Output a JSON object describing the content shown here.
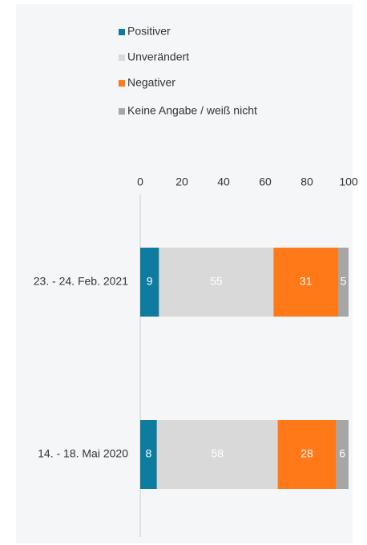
{
  "chart_data": {
    "type": "bar",
    "orientation": "horizontal",
    "stacked": true,
    "categories": [
      "23. - 24. Feb. 2021",
      "14. - 18. Mai 2020"
    ],
    "series": [
      {
        "name": "Positiver",
        "color": "#0e7c9e",
        "values": [
          9,
          8
        ]
      },
      {
        "name": "Unverändert",
        "color": "#d9d9d9",
        "values": [
          55,
          58
        ]
      },
      {
        "name": "Negativer",
        "color": "#ff7919",
        "values": [
          31,
          28
        ]
      },
      {
        "name": "Keine Angabe / weiß nicht",
        "color": "#a6a6a6",
        "values": [
          5,
          6
        ]
      }
    ],
    "xlim": [
      0,
      100
    ],
    "xticks": [
      0,
      20,
      40,
      60,
      80,
      100
    ]
  }
}
